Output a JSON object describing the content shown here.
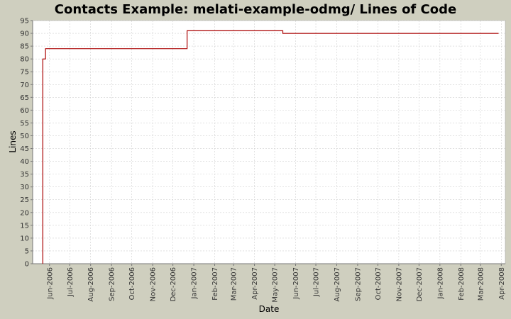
{
  "chart_data": {
    "type": "line",
    "title": "Contacts Example: melati-example-odmg/ Lines of Code",
    "xlabel": "Date",
    "ylabel": "Lines",
    "ylim": [
      0,
      95
    ],
    "yticks": [
      0,
      5,
      10,
      15,
      20,
      25,
      30,
      35,
      40,
      45,
      50,
      55,
      60,
      65,
      70,
      75,
      80,
      85,
      90,
      95
    ],
    "xlim": [
      "2006-05-07",
      "2008-04-07"
    ],
    "xticks": [
      {
        "date": "2006-06-01",
        "label": "Jun-2006"
      },
      {
        "date": "2006-07-01",
        "label": "Jul-2006"
      },
      {
        "date": "2006-08-01",
        "label": "Aug-2006"
      },
      {
        "date": "2006-09-01",
        "label": "Sep-2006"
      },
      {
        "date": "2006-10-01",
        "label": "Oct-2006"
      },
      {
        "date": "2006-11-01",
        "label": "Nov-2006"
      },
      {
        "date": "2006-12-01",
        "label": "Dec-2006"
      },
      {
        "date": "2007-01-01",
        "label": "Jan-2007"
      },
      {
        "date": "2007-02-01",
        "label": "Feb-2007"
      },
      {
        "date": "2007-03-01",
        "label": "Mar-2007"
      },
      {
        "date": "2007-04-01",
        "label": "Apr-2007"
      },
      {
        "date": "2007-05-01",
        "label": "May-2007"
      },
      {
        "date": "2007-06-01",
        "label": "Jun-2007"
      },
      {
        "date": "2007-07-01",
        "label": "Jul-2007"
      },
      {
        "date": "2007-08-01",
        "label": "Aug-2007"
      },
      {
        "date": "2007-09-01",
        "label": "Sep-2007"
      },
      {
        "date": "2007-10-01",
        "label": "Oct-2007"
      },
      {
        "date": "2007-11-01",
        "label": "Nov-2007"
      },
      {
        "date": "2007-12-01",
        "label": "Dec-2007"
      },
      {
        "date": "2008-01-01",
        "label": "Jan-2008"
      },
      {
        "date": "2008-02-01",
        "label": "Feb-2008"
      },
      {
        "date": "2008-03-01",
        "label": "Mar-2008"
      },
      {
        "date": "2008-04-01",
        "label": "Apr-2008"
      }
    ],
    "grid": true,
    "series": [
      {
        "color": "#aa0000",
        "step": true,
        "points": [
          {
            "x": "2006-05-22",
            "y": 0
          },
          {
            "x": "2006-05-22",
            "y": 80
          },
          {
            "x": "2006-05-26",
            "y": 84
          },
          {
            "x": "2006-12-22",
            "y": 91
          },
          {
            "x": "2007-05-13",
            "y": 90
          },
          {
            "x": "2008-03-28",
            "y": 90
          }
        ]
      }
    ]
  }
}
